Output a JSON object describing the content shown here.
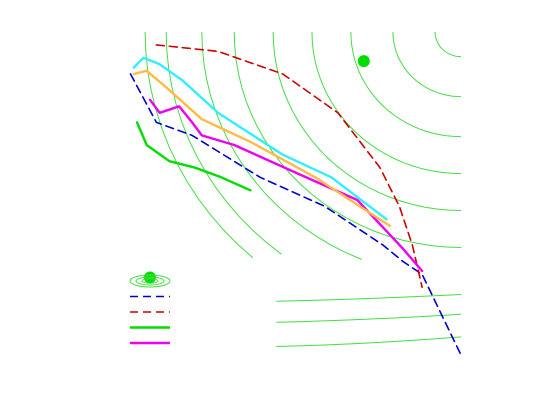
{
  "chart_data": {
    "type": "line",
    "title": "",
    "xlabel": "",
    "ylabel": "",
    "xlim": [
      0,
      1
    ],
    "ylim": [
      0,
      1
    ],
    "grid": false,
    "axes_visible": false,
    "legend": {
      "placement": "bottom-left",
      "entries": [
        {
          "style": "contour",
          "label": ""
        },
        {
          "style": "dashed",
          "color": "#0000cc",
          "label": ""
        },
        {
          "style": "dashed",
          "color": "#cc0000",
          "label": ""
        },
        {
          "style": "solid",
          "color": "#00dd00",
          "label": ""
        },
        {
          "style": "solid",
          "color": "#ee00ee",
          "label": ""
        }
      ]
    },
    "contour_color": "#44dd44",
    "contour_levels_left": [
      0.025,
      0.09,
      0.2,
      0.3,
      0.42,
      0.54,
      0.66,
      0.79,
      0.92
    ],
    "contour_levels_right": [
      0.38,
      0.47,
      0.52,
      0.58,
      0.64,
      0.71,
      0.78,
      0.84
    ],
    "contour_levels_bottom": [
      0.16,
      0.095,
      0.02
    ],
    "points": [
      {
        "name": "target-point",
        "x": 0.7,
        "y": 0.91,
        "color": "#00dd00"
      },
      {
        "name": "start-point",
        "x": 0.04,
        "y": 0.24,
        "color": "#00dd00"
      }
    ],
    "series": [
      {
        "color": "#0000cc",
        "dash": "dashed",
        "x": [
          -0.02,
          0.06,
          0.17,
          0.38,
          0.58,
          0.76,
          0.82,
          0.88,
          1.0
        ],
        "y": [
          0.87,
          0.72,
          0.68,
          0.55,
          0.46,
          0.34,
          0.29,
          0.25,
          0.0
        ]
      },
      {
        "color": "#cc0000",
        "dash": "dashed",
        "x": [
          0.06,
          0.25,
          0.45,
          0.62,
          0.75,
          0.81,
          0.85,
          0.88
        ],
        "y": [
          0.96,
          0.94,
          0.87,
          0.75,
          0.58,
          0.46,
          0.34,
          0.21
        ]
      },
      {
        "color": "#00dd00",
        "dash": "solid",
        "x": [
          0.0,
          0.03,
          0.1,
          0.18,
          0.26,
          0.35
        ],
        "y": [
          0.72,
          0.65,
          0.6,
          0.58,
          0.55,
          0.51
        ]
      },
      {
        "color": "#ee00ee",
        "dash": "solid",
        "x": [
          0.04,
          0.07,
          0.13,
          0.17,
          0.2,
          0.3,
          0.5,
          0.68,
          0.82,
          0.88
        ],
        "y": [
          0.79,
          0.75,
          0.77,
          0.72,
          0.68,
          0.65,
          0.56,
          0.48,
          0.33,
          0.26
        ]
      },
      {
        "color": "#ffbb44",
        "dash": "solid",
        "x": [
          -0.01,
          0.03,
          0.1,
          0.2,
          0.35,
          0.55,
          0.78
        ],
        "y": [
          0.87,
          0.88,
          0.82,
          0.73,
          0.66,
          0.55,
          0.4
        ]
      },
      {
        "color": "#33eeff",
        "dash": "solid",
        "x": [
          -0.01,
          0.02,
          0.07,
          0.14,
          0.25,
          0.45,
          0.6,
          0.77
        ],
        "y": [
          0.89,
          0.92,
          0.9,
          0.85,
          0.75,
          0.62,
          0.55,
          0.42
        ]
      }
    ]
  }
}
